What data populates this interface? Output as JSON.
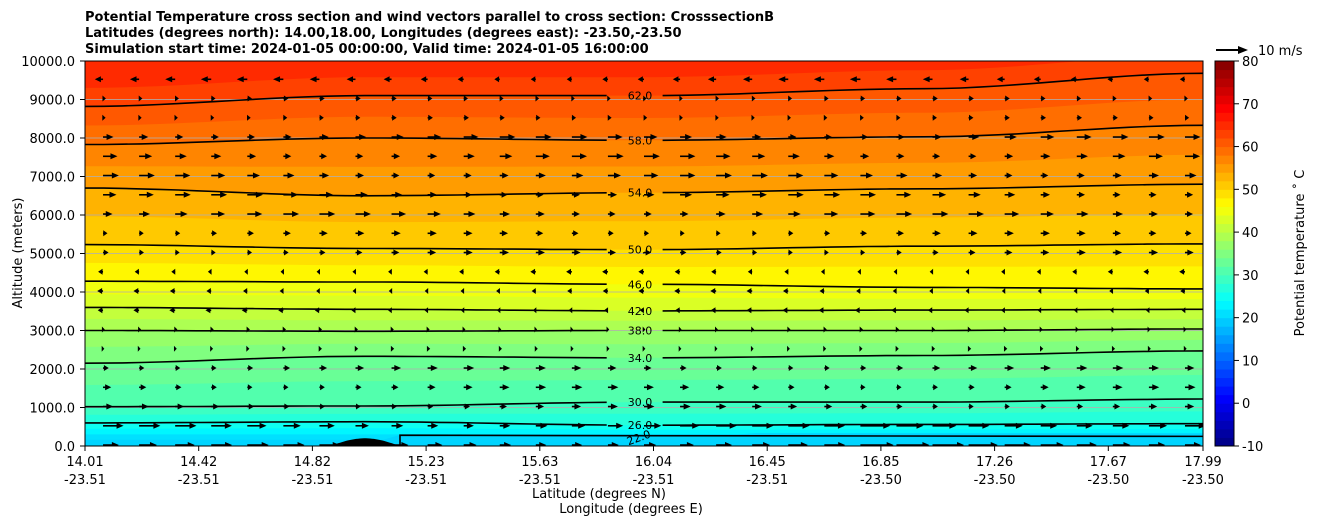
{
  "chart_data": {
    "type": "contour",
    "title": [
      "Potential Temperature cross section and wind vectors parallel to cross section: CrosssectionB",
      "Latitudes (degrees north): 14.00,18.00, Longitudes (degrees east): -23.50,-23.50",
      "Simulation start time: 2024-01-05 00:00:00, Valid time: 2024-01-05 16:00:00"
    ],
    "xlabel_lat": "Latitude (degrees N)",
    "xlabel_lon": "Longitude (degrees E)",
    "ylabel": "Altitude (meters)",
    "x_range": [
      14.01,
      17.99
    ],
    "ylim": [
      0,
      10000
    ],
    "x_ticks": [
      {
        "lat": "14.01",
        "lon": "-23.51"
      },
      {
        "lat": "14.42",
        "lon": "-23.51"
      },
      {
        "lat": "14.82",
        "lon": "-23.51"
      },
      {
        "lat": "15.23",
        "lon": "-23.51"
      },
      {
        "lat": "15.63",
        "lon": "-23.51"
      },
      {
        "lat": "16.04",
        "lon": "-23.51"
      },
      {
        "lat": "16.45",
        "lon": "-23.51"
      },
      {
        "lat": "16.85",
        "lon": "-23.50"
      },
      {
        "lat": "17.26",
        "lon": "-23.50"
      },
      {
        "lat": "17.67",
        "lon": "-23.50"
      },
      {
        "lat": "17.99",
        "lon": "-23.50"
      }
    ],
    "y_ticks": [
      "0.0",
      "1000.0",
      "2000.0",
      "3000.0",
      "4000.0",
      "5000.0",
      "6000.0",
      "7000.0",
      "8000.0",
      "9000.0",
      "10000.0"
    ],
    "y_tick_values": [
      0,
      1000,
      2000,
      3000,
      4000,
      5000,
      6000,
      7000,
      8000,
      9000,
      10000
    ],
    "contours": [
      {
        "level": 22.0,
        "label": "22.0"
      },
      {
        "level": 26.0,
        "label": "26.0"
      },
      {
        "level": 30.0,
        "label": "30.0"
      },
      {
        "level": 34.0,
        "label": "34.0"
      },
      {
        "level": 38.0,
        "label": "38.0"
      },
      {
        "level": 42.0,
        "label": "42.0"
      },
      {
        "level": 46.0,
        "label": "46.0"
      },
      {
        "level": 50.0,
        "label": "50.0"
      },
      {
        "level": 54.0,
        "label": "54.0"
      },
      {
        "level": 58.0,
        "label": "58.0"
      },
      {
        "level": 62.0,
        "label": "62.0"
      }
    ],
    "colorbar": {
      "label": "Potential temperature ˚ C",
      "min": -10,
      "max": 80,
      "ticks": [
        "-10",
        "0",
        "10",
        "20",
        "30",
        "40",
        "50",
        "60",
        "70",
        "80"
      ],
      "tick_values": [
        -10,
        0,
        10,
        20,
        30,
        40,
        50,
        60,
        70,
        80
      ],
      "colormap": "jet"
    },
    "quiver_key": {
      "label": "10 m/s",
      "speed": 10
    },
    "terrain_max_altitude": 200
  }
}
